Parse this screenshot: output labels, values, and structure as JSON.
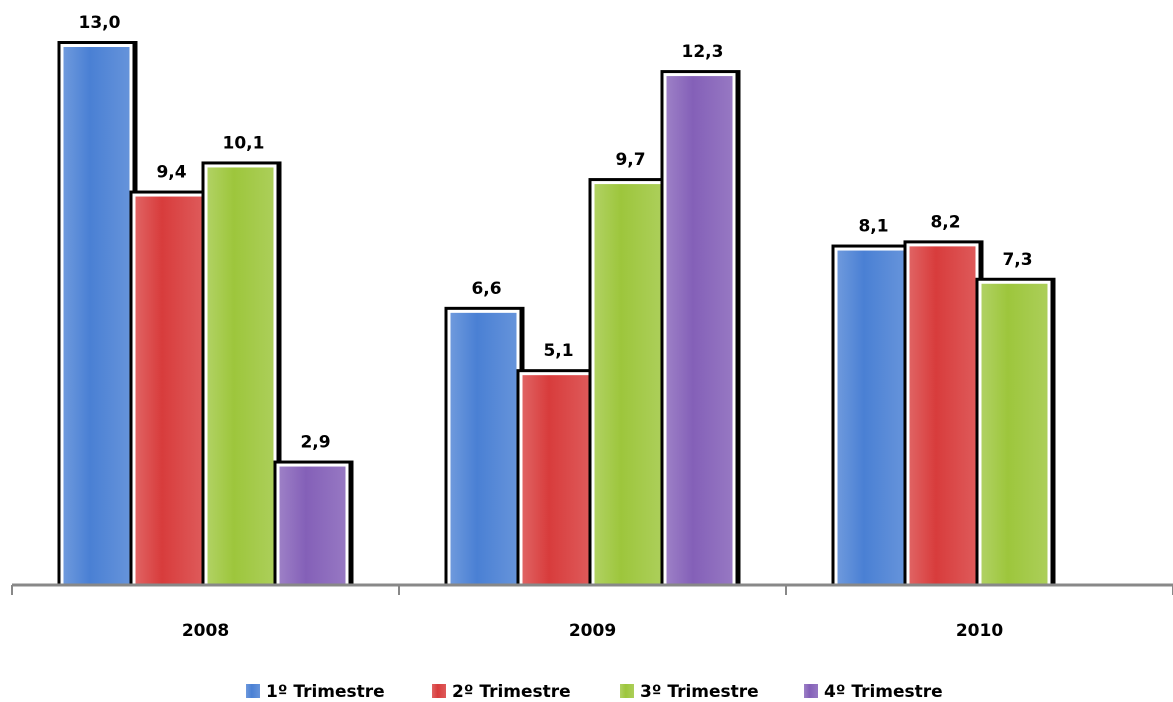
{
  "chart_data": {
    "type": "bar",
    "categories": [
      "2008",
      "2009",
      "2010"
    ],
    "series": [
      {
        "name": "1º Trimestre",
        "color": "#4a80d4",
        "values": [
          13.0,
          6.6,
          8.1
        ],
        "value_labels": [
          "13,0",
          "6,6",
          "8,1"
        ]
      },
      {
        "name": "2º Trimestre",
        "color": "#d83c3c",
        "values": [
          9.4,
          5.1,
          8.2
        ],
        "value_labels": [
          "9,4",
          "5,1",
          "8,2"
        ]
      },
      {
        "name": "3º Trimestre",
        "color": "#9dc63c",
        "values": [
          10.1,
          9.7,
          7.3
        ],
        "value_labels": [
          "10,1",
          "9,7",
          "7,3"
        ]
      },
      {
        "name": "4º Trimestre",
        "color": "#8460b8",
        "values": [
          2.9,
          12.3,
          null
        ],
        "value_labels": [
          "2,9",
          "12,3",
          null
        ]
      }
    ],
    "legend": "bottom"
  }
}
